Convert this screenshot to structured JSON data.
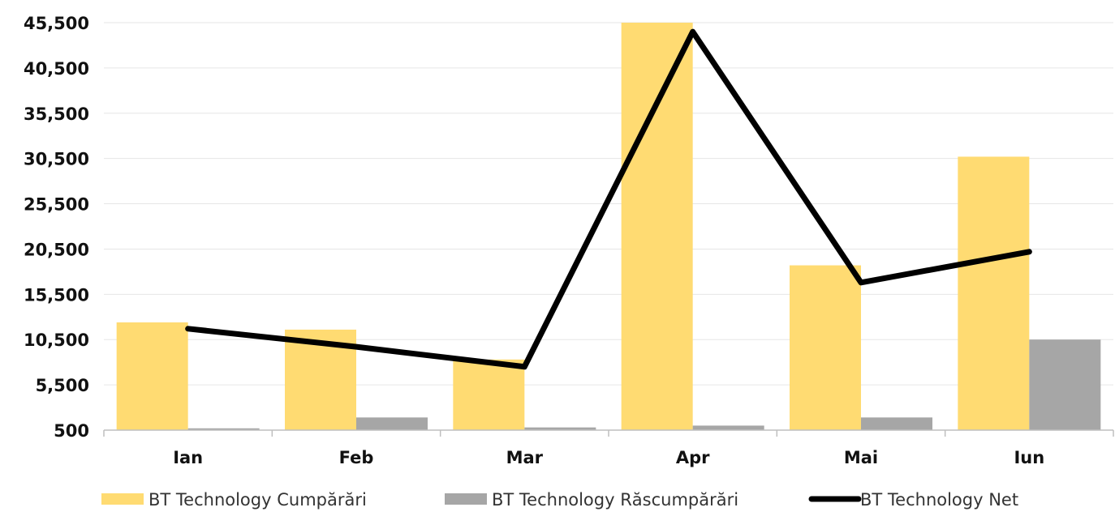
{
  "chart_data": {
    "type": "bar",
    "categories": [
      "Ian",
      "Feb",
      "Mar",
      "Apr",
      "Mai",
      "Iun"
    ],
    "series": [
      {
        "name": "BT Technology Cumpărări",
        "kind": "bar",
        "color": "#FFDB72",
        "values": [
          12400,
          11600,
          8300,
          45500,
          18700,
          30700
        ]
      },
      {
        "name": "BT Technology Răscumpărări",
        "kind": "bar",
        "color": "#A6A6A6",
        "values": [
          700,
          1900,
          800,
          1000,
          1900,
          10500
        ]
      },
      {
        "name": "BT Technology Net",
        "kind": "line",
        "color": "#000000",
        "values": [
          11700,
          9700,
          7500,
          44500,
          16800,
          20200
        ]
      }
    ],
    "yticks": [
      "500",
      "5,500",
      "10,500",
      "15,500",
      "20,500",
      "25,500",
      "30,500",
      "35,500",
      "40,500",
      "45,500"
    ],
    "ytick_values": [
      500,
      5500,
      10500,
      15500,
      20500,
      25500,
      30500,
      35500,
      40500,
      45500
    ],
    "ylim": [
      500,
      45500
    ],
    "grid": true,
    "legend_position": "bottom"
  }
}
